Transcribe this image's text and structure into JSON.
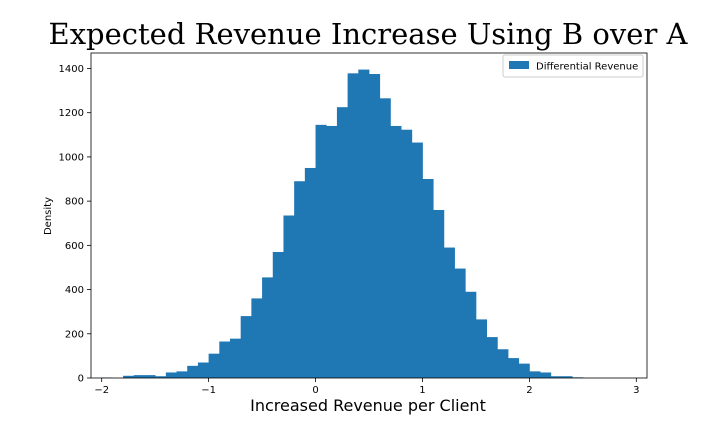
{
  "chart_data": {
    "type": "bar",
    "title": "Expected Revenue Increase Using B over A",
    "xlabel": "Increased Revenue per Client",
    "ylabel": "Density",
    "xlim": [
      -2.1,
      3.1
    ],
    "ylim": [
      0,
      1470
    ],
    "x_ticks": [
      -2,
      -1,
      0,
      1,
      2,
      3
    ],
    "y_ticks": [
      0,
      200,
      400,
      600,
      800,
      1000,
      1200,
      1400
    ],
    "grid": false,
    "legend": {
      "position": "top-right",
      "entries": [
        "Differential Revenue"
      ]
    },
    "series": [
      {
        "name": "Differential Revenue",
        "color": "#1f77b4",
        "bin_width": 0.1,
        "bin_starts": [
          -2.0,
          -1.9,
          -1.8,
          -1.7,
          -1.6,
          -1.5,
          -1.4,
          -1.3,
          -1.2,
          -1.1,
          -1.0,
          -0.9,
          -0.8,
          -0.7,
          -0.6,
          -0.5,
          -0.4,
          -0.3,
          -0.2,
          -0.1,
          0.0,
          0.1,
          0.2,
          0.3,
          0.4,
          0.5,
          0.6,
          0.7,
          0.8,
          0.9,
          1.0,
          1.1,
          1.2,
          1.3,
          1.4,
          1.5,
          1.6,
          1.7,
          1.8,
          1.9,
          2.0,
          2.1,
          2.2,
          2.3,
          2.4
        ],
        "values": [
          2,
          0,
          10,
          13,
          13,
          8,
          25,
          30,
          55,
          70,
          110,
          165,
          178,
          280,
          360,
          455,
          570,
          735,
          890,
          950,
          1145,
          1140,
          1225,
          1378,
          1395,
          1375,
          1265,
          1140,
          1123,
          1065,
          900,
          760,
          590,
          495,
          390,
          265,
          185,
          130,
          90,
          65,
          30,
          25,
          8,
          8,
          3
        ]
      }
    ]
  }
}
